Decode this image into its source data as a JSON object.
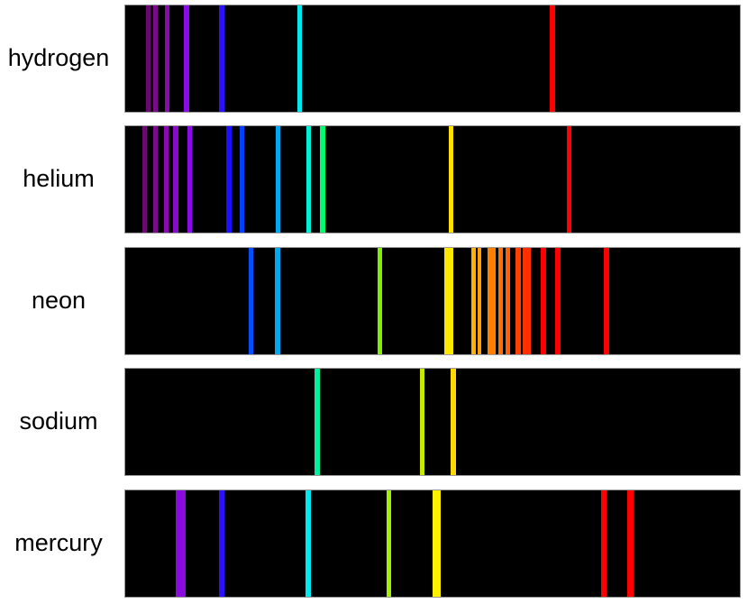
{
  "spectra": [
    {
      "element": "hydrogen",
      "line_colors": [
        "#6a0a70",
        "#7a0a88",
        "#8a0ab0",
        "#8a0ae8",
        "#2a10ff",
        "#00e8f0",
        "#ff0000"
      ]
    },
    {
      "element": "helium",
      "line_colors": [
        "#6a0a70",
        "#7a0a88",
        "#8a0ab0",
        "#8a0ac8",
        "#8a0ae8",
        "#1a10ff",
        "#0040ff",
        "#00a8f0",
        "#00f0d8",
        "#00ff70",
        "#ffe000",
        "#ff0000"
      ]
    },
    {
      "element": "neon",
      "line_colors": [
        "#0050ff",
        "#00a8f0",
        "#80f000",
        "#ffe800",
        "#ffb000",
        "#ffa000",
        "#ff8000",
        "#ff7000",
        "#ff6000",
        "#ff4000",
        "#ff3000",
        "#ff0000",
        "#ff0000",
        "#ff0000"
      ]
    },
    {
      "element": "sodium",
      "line_colors": [
        "#00f0a0",
        "#c8e800",
        "#ffd800"
      ]
    },
    {
      "element": "mercury",
      "line_colors": [
        "#8a0ae0",
        "#2a10ff",
        "#00e8f0",
        "#a0f000",
        "#fff000",
        "#ff0000",
        "#ff0000"
      ]
    }
  ]
}
